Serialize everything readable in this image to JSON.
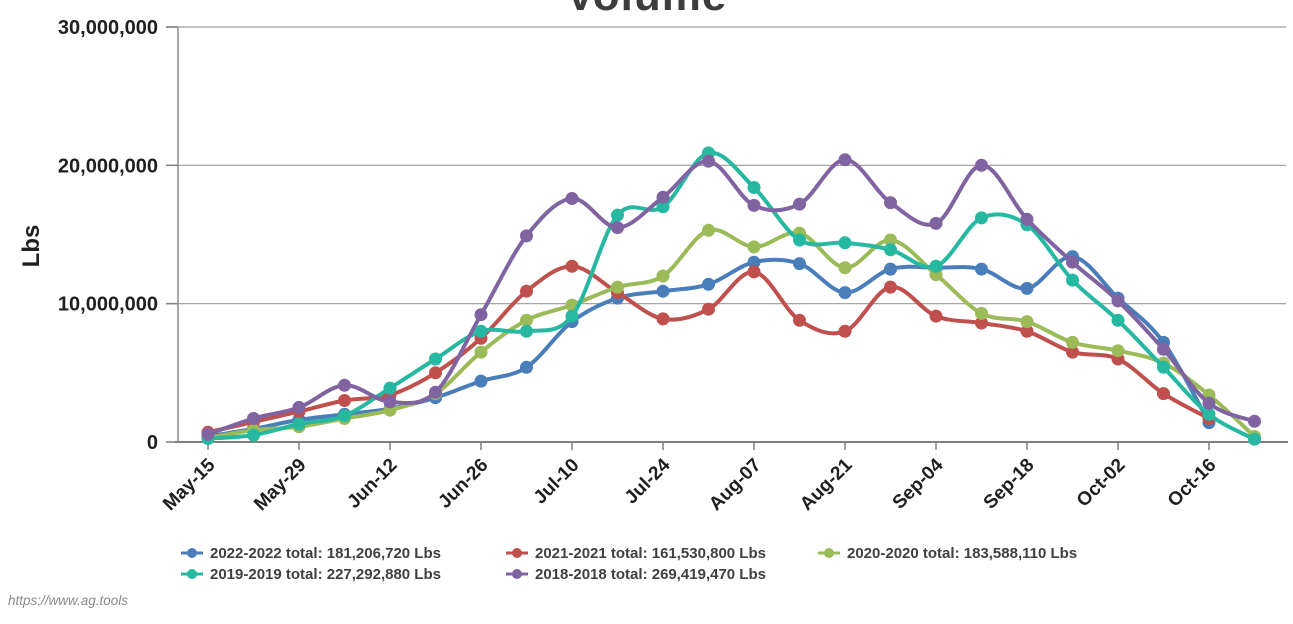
{
  "title": "Volume",
  "footer": {
    "url": "https://www.ag.tools"
  },
  "chart_data": {
    "type": "line",
    "title": "Volume",
    "xlabel": "",
    "ylabel": "Lbs",
    "ylim": [
      0,
      30000000
    ],
    "grid": true,
    "legend_position": "bottom",
    "unit": "Lbs",
    "y_ticks": [
      {
        "value": 0,
        "label": "0"
      },
      {
        "value": 10000000,
        "label": "10,000,000"
      },
      {
        "value": 20000000,
        "label": "20,000,000"
      },
      {
        "value": 30000000,
        "label": "30,000,000"
      }
    ],
    "x_dates": [
      "May-15",
      "May-22",
      "May-29",
      "Jun-05",
      "Jun-12",
      "Jun-19",
      "Jun-26",
      "Jul-03",
      "Jul-10",
      "Jul-17",
      "Jul-24",
      "Jul-31",
      "Aug-07",
      "Aug-14",
      "Aug-21",
      "Aug-28",
      "Sep-04",
      "Sep-11",
      "Sep-18",
      "Sep-25",
      "Oct-02",
      "Oct-09",
      "Oct-16",
      "Oct-23"
    ],
    "x_tick_labels": [
      "May-15",
      "May-29",
      "Jun-12",
      "Jun-26",
      "Jul-10",
      "Jul-24",
      "Aug-07",
      "Aug-21",
      "Sep-04",
      "Sep-18",
      "Oct-02",
      "Oct-16"
    ],
    "series": [
      {
        "name": "2022-2022",
        "legend_label": "2022-2022 total: 181,206,720 Lbs",
        "total_label": "181,206,720 Lbs",
        "color": "#4a7ebb",
        "values": [
          400000,
          950000,
          1600000,
          2000000,
          2400000,
          3200000,
          4400000,
          5400000,
          8700000,
          10400000,
          10900000,
          11400000,
          13000000,
          12900000,
          10800000,
          12500000,
          12600000,
          12500000,
          11100000,
          13400000,
          10400000,
          7200000,
          1400000
        ]
      },
      {
        "name": "2021-2021",
        "legend_label": "2021-2021 total: 161,530,800 Lbs",
        "total_label": "161,530,800 Lbs",
        "color": "#c0504d",
        "values": [
          700000,
          1450000,
          2200000,
          3000000,
          3400000,
          5000000,
          7500000,
          10900000,
          12700000,
          10800000,
          8900000,
          9600000,
          12300000,
          8800000,
          8000000,
          11200000,
          9100000,
          8600000,
          8000000,
          6500000,
          6000000,
          3500000,
          1700000
        ]
      },
      {
        "name": "2020-2020",
        "legend_label": "2020-2020 total: 183,588,110 Lbs",
        "total_label": "183,588,110 Lbs",
        "color": "#9bbb59",
        "values": [
          300000,
          850000,
          1100000,
          1700000,
          2300000,
          3500000,
          6500000,
          8800000,
          9900000,
          11200000,
          12000000,
          15300000,
          14100000,
          15100000,
          12600000,
          14600000,
          12100000,
          9300000,
          8700000,
          7200000,
          6600000,
          5700000,
          3400000,
          400000
        ]
      },
      {
        "name": "2019-2019",
        "legend_label": "2019-2019 total: 227,292,880 Lbs",
        "total_label": "227,292,880 Lbs",
        "color": "#26b8a1",
        "values": [
          250000,
          500000,
          1300000,
          1900000,
          3900000,
          6000000,
          8000000,
          8000000,
          9100000,
          16400000,
          17000000,
          20900000,
          18400000,
          14600000,
          14400000,
          13900000,
          12700000,
          16200000,
          15700000,
          11700000,
          8800000,
          5400000,
          2000000,
          200000
        ]
      },
      {
        "name": "2018-2018",
        "legend_label": "2018-2018 total: 269,419,470 Lbs",
        "total_label": "269,419,470 Lbs",
        "color": "#8064a2",
        "values": [
          550000,
          1700000,
          2500000,
          4100000,
          2900000,
          3600000,
          9200000,
          14900000,
          17600000,
          15500000,
          17700000,
          20300000,
          17100000,
          17200000,
          20400000,
          17300000,
          15800000,
          20000000,
          16100000,
          13000000,
          10200000,
          6700000,
          2800000,
          1500000
        ]
      }
    ]
  }
}
